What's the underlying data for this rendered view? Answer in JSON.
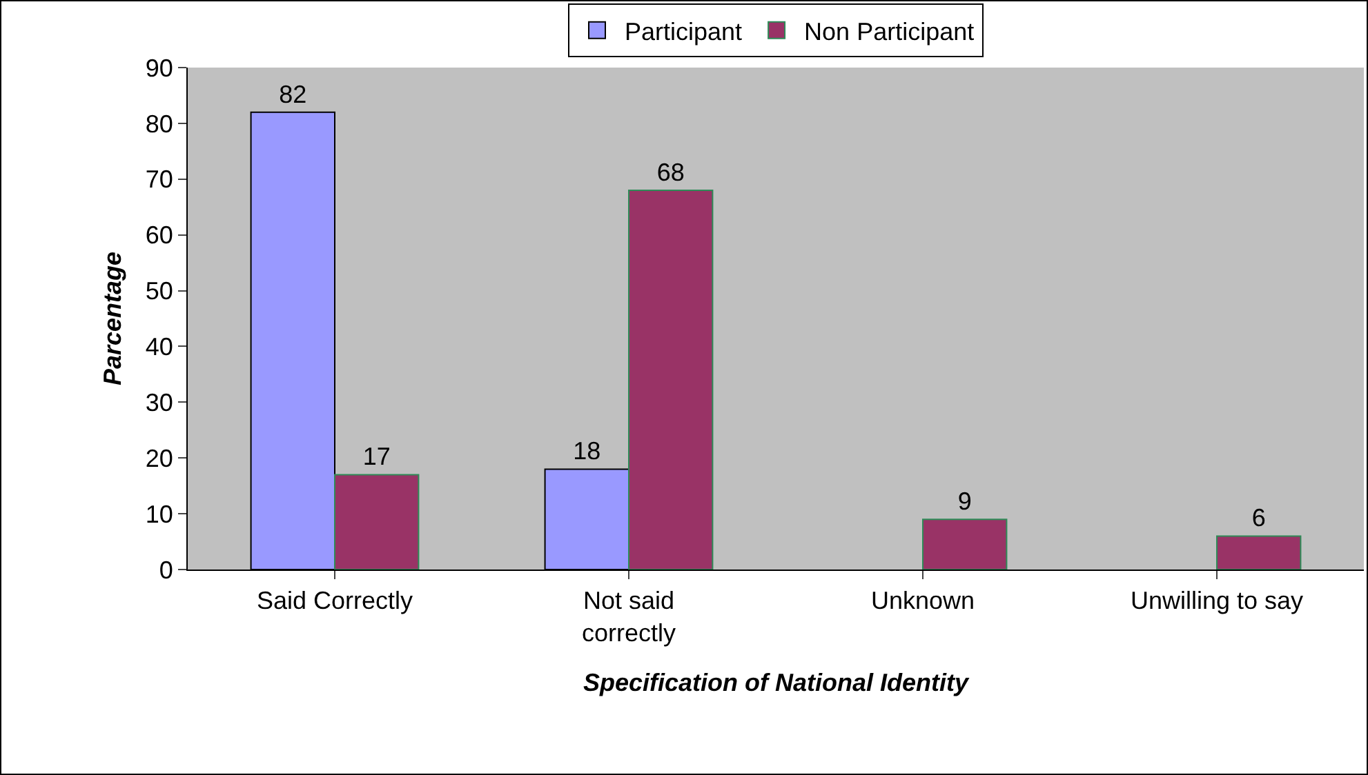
{
  "chart_data": {
    "type": "bar",
    "xlabel": "Specification of National Identity",
    "ylabel": "Parcentage",
    "categories": [
      "Said Correctly",
      "Not said correctly",
      "Unknown",
      "Unwilling to say"
    ],
    "series": [
      {
        "name": "Participant",
        "color": "#9999ff",
        "values": [
          82,
          18,
          null,
          null
        ]
      },
      {
        "name": "Non Participant",
        "color": "#993366",
        "values": [
          17,
          68,
          9,
          6
        ]
      }
    ],
    "ylim": [
      0,
      90
    ],
    "yticks": [
      0,
      10,
      20,
      30,
      40,
      50,
      60,
      70,
      80,
      90
    ],
    "grid": false,
    "legend": "top",
    "data_labels": true
  }
}
